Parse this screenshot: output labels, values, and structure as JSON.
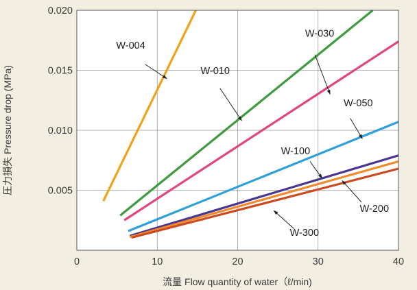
{
  "chart_data": {
    "type": "line",
    "title": "",
    "xlabel": "流量  Flow quantity of water（ℓ/min)",
    "ylabel": "圧力損失  Pressure drop (MPa)",
    "xlim": [
      0,
      40
    ],
    "ylim": [
      0,
      0.02
    ],
    "xticks": [
      0,
      10,
      20,
      30,
      40
    ],
    "yticks": [
      0.005,
      0.01,
      0.015,
      0.02
    ],
    "x_tick_labels": [
      "0",
      "10",
      "20",
      "30",
      "40"
    ],
    "y_tick_labels": [
      "0.005",
      "0.010",
      "0.015",
      "0.020"
    ],
    "grid": true,
    "legend": "none (series labeled directly with leader lines)",
    "series": [
      {
        "name": "W-004",
        "color": "#f0a21a",
        "x": [
          3.3,
          14.8
        ],
        "y": [
          0.0041,
          0.02
        ]
      },
      {
        "name": "W-010",
        "color": "#3d9a3d",
        "x": [
          5.4,
          36.8
        ],
        "y": [
          0.0029,
          0.02
        ]
      },
      {
        "name": "W-030",
        "color": "#e0457f",
        "x": [
          5.9,
          40
        ],
        "y": [
          0.0025,
          0.0174
        ]
      },
      {
        "name": "W-050",
        "color": "#2f9fd8",
        "x": [
          6.4,
          40
        ],
        "y": [
          0.0016,
          0.0107
        ]
      },
      {
        "name": "W-100",
        "color": "#4a3590",
        "x": [
          6.6,
          40
        ],
        "y": [
          0.0012,
          0.0079
        ]
      },
      {
        "name": "W-200",
        "color": "#f08a2c",
        "x": [
          6.6,
          40
        ],
        "y": [
          0.0011,
          0.0074
        ]
      },
      {
        "name": "W-300",
        "color": "#cc4a20",
        "x": [
          6.8,
          40
        ],
        "y": [
          0.00105,
          0.0068
        ]
      }
    ],
    "annotations": [
      {
        "text": "W-004",
        "series": "W-004",
        "label_at": [
          6.7,
          0.0168
        ],
        "point_at": [
          11.2,
          0.0143
        ],
        "arrow_from": [
          8.5,
          0.0155
        ]
      },
      {
        "text": "W-010",
        "series": "W-010",
        "label_at": [
          17.2,
          0.0147
        ],
        "point_at": [
          20.5,
          0.0108
        ],
        "arrow_from": [
          17.8,
          0.0135
        ]
      },
      {
        "text": "W-030",
        "series": "W-030",
        "label_at": [
          30.2,
          0.0178
        ],
        "point_at": [
          31.5,
          0.013
        ],
        "arrow_from": [
          29.6,
          0.0163
        ]
      },
      {
        "text": "W-050",
        "series": "W-050",
        "label_at": [
          35.0,
          0.012
        ],
        "point_at": [
          35.5,
          0.0093
        ],
        "arrow_from": [
          34.0,
          0.011
        ]
      },
      {
        "text": "W-100",
        "series": "W-100",
        "label_at": [
          27.2,
          0.008
        ],
        "point_at": [
          30.5,
          0.006
        ],
        "arrow_from": [
          29.0,
          0.0074
        ]
      },
      {
        "text": "W-200",
        "series": "W-200",
        "label_at": [
          37.0,
          0.0032
        ],
        "point_at": [
          33.0,
          0.0058
        ],
        "arrow_from": [
          35.4,
          0.004
        ]
      },
      {
        "text": "W-300",
        "series": "W-300",
        "label_at": [
          28.3,
          0.0012
        ],
        "point_at": [
          24.5,
          0.0033
        ],
        "arrow_from": [
          27.0,
          0.0018
        ]
      }
    ]
  }
}
